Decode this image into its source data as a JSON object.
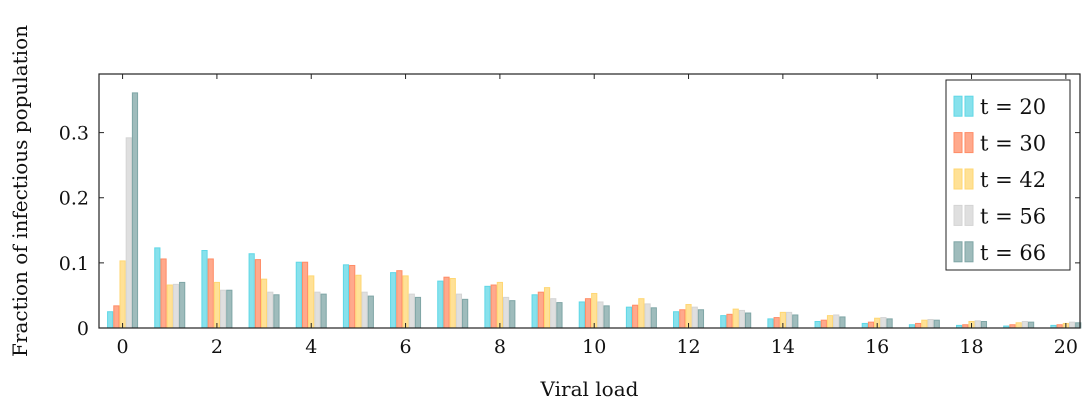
{
  "chart_data": {
    "type": "bar",
    "xlabel": "Viral load",
    "ylabel": "Fraction of infectious population",
    "xlim": [
      -0.5,
      20.3
    ],
    "ylim": [
      0,
      0.39
    ],
    "xticks": [
      0,
      2,
      4,
      6,
      8,
      10,
      12,
      14,
      16,
      18,
      20
    ],
    "yticks": [
      0,
      0.1,
      0.2,
      0.3
    ],
    "ytick_labels": [
      "0",
      "0.1",
      "0.2",
      "0.3"
    ],
    "grid": false,
    "legend_position": "top-right",
    "categories": [
      0,
      1,
      2,
      3,
      4,
      5,
      6,
      7,
      8,
      9,
      10,
      11,
      12,
      13,
      14,
      15,
      16,
      17,
      18,
      19,
      20
    ],
    "series": [
      {
        "name": "t = 20",
        "color": "#5fd7e6",
        "values": [
          0.025,
          0.123,
          0.119,
          0.114,
          0.101,
          0.097,
          0.085,
          0.072,
          0.064,
          0.051,
          0.04,
          0.032,
          0.025,
          0.019,
          0.014,
          0.01,
          0.007,
          0.005,
          0.004,
          0.003,
          0.004
        ]
      },
      {
        "name": "t = 30",
        "color": "#ff8c66",
        "values": [
          0.034,
          0.106,
          0.106,
          0.105,
          0.101,
          0.096,
          0.088,
          0.078,
          0.066,
          0.055,
          0.045,
          0.035,
          0.028,
          0.021,
          0.016,
          0.012,
          0.009,
          0.007,
          0.005,
          0.005,
          0.005
        ]
      },
      {
        "name": "t = 42",
        "color": "#ffd773",
        "values": [
          0.103,
          0.066,
          0.07,
          0.075,
          0.08,
          0.081,
          0.08,
          0.076,
          0.07,
          0.062,
          0.053,
          0.045,
          0.036,
          0.029,
          0.024,
          0.019,
          0.015,
          0.012,
          0.01,
          0.008,
          0.007
        ]
      },
      {
        "name": "t = 56",
        "color": "#d4d4d4",
        "values": [
          0.292,
          0.067,
          0.058,
          0.055,
          0.055,
          0.055,
          0.052,
          0.052,
          0.047,
          0.045,
          0.04,
          0.037,
          0.032,
          0.027,
          0.024,
          0.02,
          0.016,
          0.013,
          0.011,
          0.01,
          0.009
        ]
      },
      {
        "name": "t = 66",
        "color": "#7fa6a6",
        "values": [
          0.361,
          0.07,
          0.058,
          0.051,
          0.052,
          0.049,
          0.047,
          0.044,
          0.042,
          0.039,
          0.034,
          0.031,
          0.028,
          0.023,
          0.02,
          0.017,
          0.014,
          0.012,
          0.01,
          0.009,
          0.008
        ]
      }
    ]
  }
}
